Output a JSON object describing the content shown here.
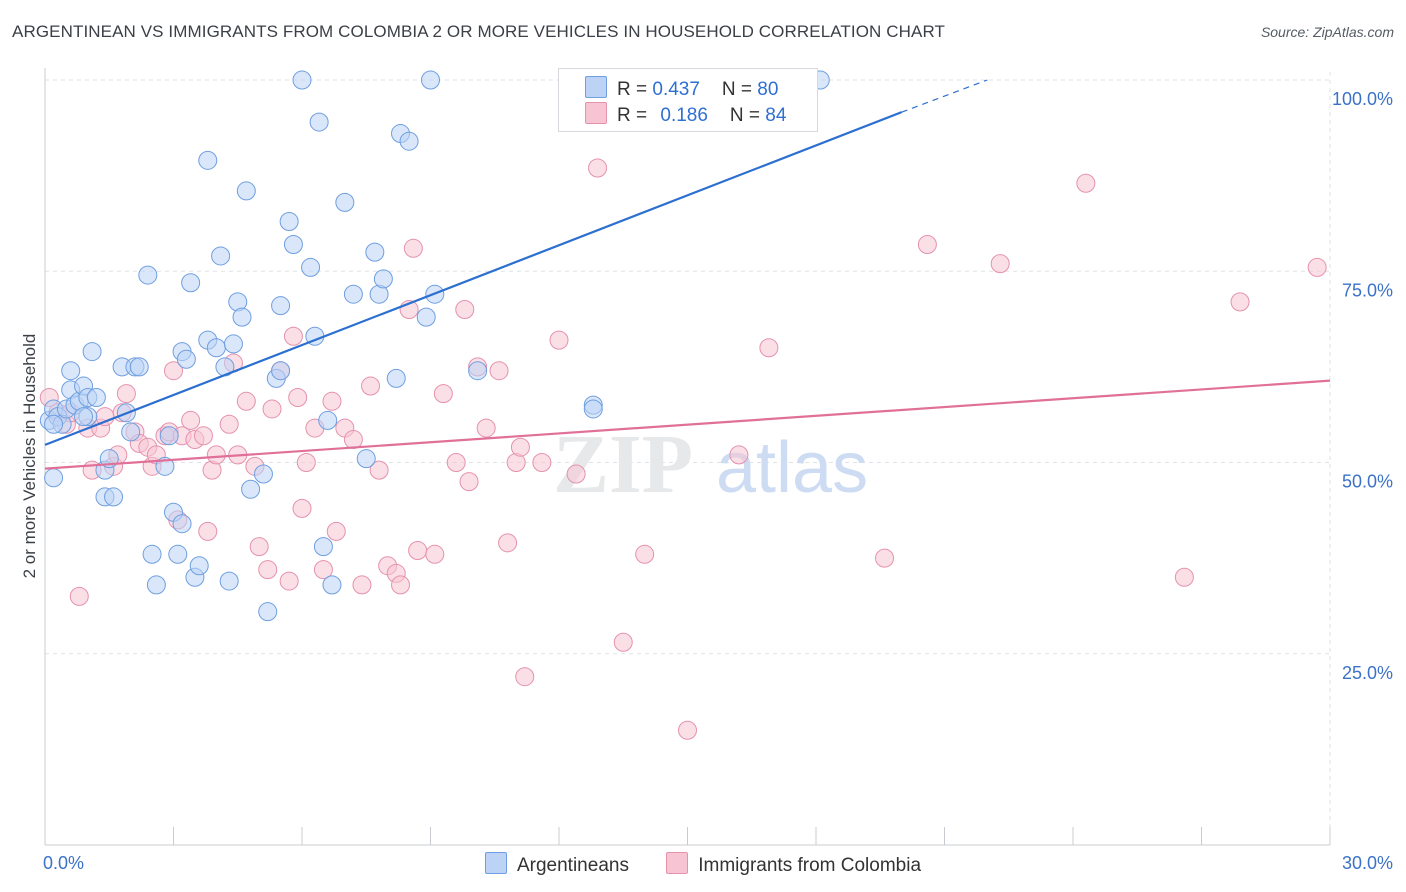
{
  "title": "ARGENTINEAN VS IMMIGRANTS FROM COLOMBIA 2 OR MORE VEHICLES IN HOUSEHOLD CORRELATION CHART",
  "source": "Source: ZipAtlas.com",
  "watermark": {
    "zip": "ZIP",
    "atlas": "atlas"
  },
  "colors": {
    "blue_fill": "#bcd3f5",
    "blue_stroke": "#6f9fe0",
    "blue_line": "#2b6fd0",
    "pink_fill": "#f7c4d3",
    "pink_stroke": "#e592ad",
    "pink_line": "#e07098",
    "axis_text": "#3b72c8",
    "grid": "#dfe2e6"
  },
  "legend_top": [
    {
      "r_label": "R = ",
      "r_value": "0.437",
      "n_label": "N = ",
      "n_value": "80"
    },
    {
      "r_label": "R = ",
      "r_value": "0.186",
      "n_label": "N = ",
      "n_value": "84"
    }
  ],
  "chart_data": {
    "type": "scatter",
    "title": "ARGENTINEAN VS IMMIGRANTS FROM COLOMBIA 2 OR MORE VEHICLES IN HOUSEHOLD CORRELATION CHART",
    "xlabel": "",
    "ylabel": "2 or more Vehicles in Household",
    "xlim": [
      0,
      30
    ],
    "ylim": [
      0,
      102
    ],
    "x_tick_labels": [
      "0.0%",
      "30.0%"
    ],
    "y_tick_labels": [
      "25.0%",
      "50.0%",
      "75.0%",
      "100.0%"
    ],
    "y_ticks": [
      25,
      50,
      75,
      100
    ],
    "grid": true,
    "legend_position": "bottom",
    "series": [
      {
        "name": "Argentineans",
        "color": "#6f9fe0",
        "trend": {
          "x0": 0,
          "y0": 52.3,
          "x1": 20.0,
          "y1": 95.8,
          "dash_to_x": 22.0,
          "dash_to_y": 100.0
        },
        "points": [
          [
            0.1,
            55.5
          ],
          [
            0.2,
            57.0
          ],
          [
            0.2,
            48.0
          ],
          [
            0.3,
            56.0
          ],
          [
            0.4,
            55.0
          ],
          [
            0.5,
            57.0
          ],
          [
            0.6,
            59.5
          ],
          [
            0.6,
            62.0
          ],
          [
            0.7,
            57.5
          ],
          [
            0.8,
            58.0
          ],
          [
            0.9,
            60.0
          ],
          [
            1.0,
            58.5
          ],
          [
            1.0,
            56.0
          ],
          [
            1.1,
            64.5
          ],
          [
            1.2,
            58.5
          ],
          [
            1.4,
            49.0
          ],
          [
            1.4,
            45.5
          ],
          [
            1.5,
            50.5
          ],
          [
            1.6,
            45.5
          ],
          [
            1.8,
            62.5
          ],
          [
            1.9,
            56.5
          ],
          [
            2.0,
            54.0
          ],
          [
            2.1,
            62.5
          ],
          [
            2.2,
            62.5
          ],
          [
            2.4,
            74.5
          ],
          [
            2.5,
            38.0
          ],
          [
            2.6,
            34.0
          ],
          [
            2.8,
            49.5
          ],
          [
            2.9,
            53.5
          ],
          [
            3.0,
            43.5
          ],
          [
            3.1,
            38.0
          ],
          [
            3.2,
            42.0
          ],
          [
            3.2,
            64.5
          ],
          [
            3.3,
            63.5
          ],
          [
            3.4,
            73.5
          ],
          [
            3.5,
            35.0
          ],
          [
            3.6,
            36.5
          ],
          [
            3.8,
            66.0
          ],
          [
            3.8,
            89.5
          ],
          [
            4.0,
            65.0
          ],
          [
            4.1,
            77.0
          ],
          [
            4.2,
            62.5
          ],
          [
            4.3,
            34.5
          ],
          [
            4.4,
            65.5
          ],
          [
            4.5,
            71.0
          ],
          [
            4.6,
            69.0
          ],
          [
            4.7,
            85.5
          ],
          [
            4.8,
            46.5
          ],
          [
            5.1,
            48.5
          ],
          [
            5.2,
            30.5
          ],
          [
            5.4,
            61.0
          ],
          [
            5.5,
            62.0
          ],
          [
            5.5,
            70.5
          ],
          [
            5.7,
            81.5
          ],
          [
            5.8,
            78.5
          ],
          [
            6.0,
            100.0
          ],
          [
            6.2,
            75.5
          ],
          [
            6.3,
            66.5
          ],
          [
            6.4,
            94.5
          ],
          [
            6.5,
            39.0
          ],
          [
            6.6,
            55.5
          ],
          [
            6.7,
            34.0
          ],
          [
            7.0,
            84.0
          ],
          [
            7.2,
            72.0
          ],
          [
            7.5,
            50.5
          ],
          [
            7.7,
            77.5
          ],
          [
            7.8,
            72.0
          ],
          [
            7.9,
            74.0
          ],
          [
            8.2,
            61.0
          ],
          [
            8.3,
            93.0
          ],
          [
            8.5,
            92.0
          ],
          [
            8.9,
            69.0
          ],
          [
            9.0,
            100.0
          ],
          [
            9.1,
            72.0
          ],
          [
            10.1,
            62.0
          ],
          [
            12.8,
            57.5
          ],
          [
            12.8,
            57.0
          ],
          [
            18.1,
            100.0
          ],
          [
            0.2,
            55.0
          ],
          [
            0.9,
            56.0
          ]
        ]
      },
      {
        "name": "Immigrants from Colombia",
        "color": "#e592ad",
        "trend": {
          "x0": 0,
          "y0": 49.2,
          "x1": 30.0,
          "y1": 60.7
        },
        "points": [
          [
            0.1,
            58.5
          ],
          [
            0.3,
            56.5
          ],
          [
            0.5,
            55.0
          ],
          [
            0.6,
            56.5
          ],
          [
            0.8,
            32.5
          ],
          [
            1.0,
            54.5
          ],
          [
            1.1,
            49.0
          ],
          [
            1.3,
            54.5
          ],
          [
            1.4,
            56.0
          ],
          [
            1.6,
            49.5
          ],
          [
            1.7,
            51.0
          ],
          [
            1.8,
            56.5
          ],
          [
            1.9,
            59.0
          ],
          [
            2.1,
            54.0
          ],
          [
            2.2,
            52.5
          ],
          [
            2.4,
            52.0
          ],
          [
            2.5,
            49.5
          ],
          [
            2.6,
            51.0
          ],
          [
            2.8,
            53.5
          ],
          [
            2.9,
            54.0
          ],
          [
            3.0,
            62.0
          ],
          [
            3.1,
            42.5
          ],
          [
            3.2,
            53.5
          ],
          [
            3.4,
            55.5
          ],
          [
            3.5,
            53.0
          ],
          [
            3.7,
            53.5
          ],
          [
            3.8,
            41.0
          ],
          [
            3.9,
            49.0
          ],
          [
            4.0,
            51.0
          ],
          [
            4.3,
            55.0
          ],
          [
            4.4,
            63.0
          ],
          [
            4.5,
            51.0
          ],
          [
            4.7,
            58.0
          ],
          [
            4.9,
            49.5
          ],
          [
            5.0,
            39.0
          ],
          [
            5.2,
            36.0
          ],
          [
            5.3,
            57.0
          ],
          [
            5.5,
            62.0
          ],
          [
            5.7,
            34.5
          ],
          [
            5.8,
            66.5
          ],
          [
            5.9,
            58.5
          ],
          [
            6.0,
            44.0
          ],
          [
            6.1,
            50.0
          ],
          [
            6.3,
            54.5
          ],
          [
            6.5,
            36.0
          ],
          [
            6.7,
            58.0
          ],
          [
            6.8,
            41.0
          ],
          [
            7.0,
            54.5
          ],
          [
            7.2,
            53.0
          ],
          [
            7.4,
            34.0
          ],
          [
            7.6,
            60.0
          ],
          [
            7.8,
            49.0
          ],
          [
            8.0,
            36.5
          ],
          [
            8.2,
            35.5
          ],
          [
            8.3,
            34.0
          ],
          [
            8.5,
            70.0
          ],
          [
            8.6,
            78.0
          ],
          [
            8.7,
            38.5
          ],
          [
            9.1,
            38.0
          ],
          [
            9.3,
            59.0
          ],
          [
            9.6,
            50.0
          ],
          [
            9.8,
            70.0
          ],
          [
            9.9,
            47.5
          ],
          [
            10.1,
            62.5
          ],
          [
            10.3,
            54.5
          ],
          [
            10.6,
            62.0
          ],
          [
            10.8,
            39.5
          ],
          [
            11.0,
            50.0
          ],
          [
            11.1,
            52.0
          ],
          [
            11.2,
            22.0
          ],
          [
            11.6,
            50.0
          ],
          [
            12.0,
            66.0
          ],
          [
            12.4,
            48.5
          ],
          [
            12.9,
            88.5
          ],
          [
            13.5,
            26.5
          ],
          [
            14.0,
            38.0
          ],
          [
            15.0,
            15.0
          ],
          [
            16.2,
            51.0
          ],
          [
            16.9,
            65.0
          ],
          [
            19.6,
            37.5
          ],
          [
            20.6,
            78.5
          ],
          [
            22.3,
            76.0
          ],
          [
            24.3,
            86.5
          ],
          [
            26.6,
            35.0
          ]
        ]
      }
    ],
    "extra_points_pink": [
      [
        27.9,
        71.0
      ],
      [
        29.7,
        75.5
      ]
    ]
  },
  "bottom_legend": [
    {
      "label": "Argentineans"
    },
    {
      "label": "Immigrants from Colombia"
    }
  ]
}
